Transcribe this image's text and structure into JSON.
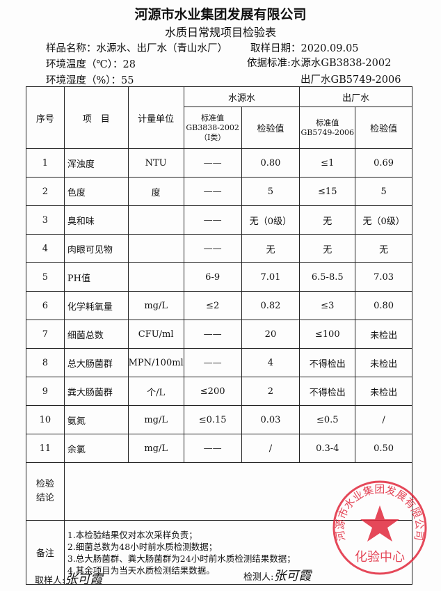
{
  "header": {
    "company": "河源市水业集团发展有限公司",
    "title": "水质日常规项目检验表"
  },
  "meta": {
    "sample_label": "样品名称：",
    "sample": "水源水、出厂水（青山水厂）",
    "date_label": "取样日期：",
    "date": "2020.09.05",
    "temp_label": "环境温度（℃）：",
    "temp": "28",
    "humidity_label": "环境湿度（%）：",
    "humidity": "55",
    "standard_label": "依据标准:",
    "standard1": "水源水GB3838-2002",
    "standard2": "出厂水GB5749-2006"
  },
  "table": {
    "headers": {
      "no": "序号",
      "item": "项　目",
      "unit": "计量单位",
      "source": "水源水",
      "plant": "出厂水",
      "std_source": "标准值",
      "std_source_code": "GB3838-2002",
      "std_source_class": "（Ⅰ类）",
      "value": "检验值",
      "std_plant": "标准值",
      "std_plant_code": "GB5749-2006"
    },
    "rows": [
      [
        "1",
        "浑浊度",
        "NTU",
        "——",
        "0.80",
        "≤1",
        "0.69"
      ],
      [
        "2",
        "色度",
        "度",
        "——",
        "5",
        "≤15",
        "5"
      ],
      [
        "3",
        "臭和味",
        "",
        "——",
        "无（0级）",
        "无",
        "无（0级）"
      ],
      [
        "4",
        "肉眼可见物",
        "",
        "——",
        "无",
        "无",
        "无"
      ],
      [
        "5",
        "PH值",
        "",
        "6-9",
        "7.01",
        "6.5-8.5",
        "7.03"
      ],
      [
        "6",
        "化学耗氧量",
        "mg/L",
        "≤2",
        "0.82",
        "≤3",
        "0.80"
      ],
      [
        "7",
        "细菌总数",
        "CFU/ml",
        "——",
        "20",
        "≤100",
        "未检出"
      ],
      [
        "8",
        "总大肠菌群",
        "MPN/100ml",
        "——",
        "4",
        "不得检出",
        "未检出"
      ],
      [
        "9",
        "粪大肠菌群",
        "个/L",
        "≤200",
        "2",
        "不得检出",
        "未检出"
      ],
      [
        "10",
        "氨氮",
        "mg/L",
        "≤0.15",
        "0.03",
        "≤0.5",
        "/"
      ],
      [
        "11",
        "余氯",
        "mg/L",
        "——",
        "/",
        "0.3-4",
        "0.50"
      ]
    ],
    "conclusion_label": "检验结论",
    "conclusion": "",
    "notes_label": "备注",
    "notes": [
      "1.本检验结果仅对本次采样负责；",
      "2.细菌总数为48小时前水质检测数据；",
      "3.总大肠菌群、粪大肠菌群为24小时前水质检测结果数据；",
      "4.其余项目为当天水质检测结果数据。"
    ]
  },
  "footer": {
    "sampler_label": "取样人:",
    "sampler_sig": "张可霞",
    "tester_label": "检测人:",
    "tester_sig": "张可霞"
  },
  "stamp": {
    "ring_text": "河源市水业集团发展有限公司",
    "center_text": "化验中心",
    "color": "#e0283c"
  }
}
